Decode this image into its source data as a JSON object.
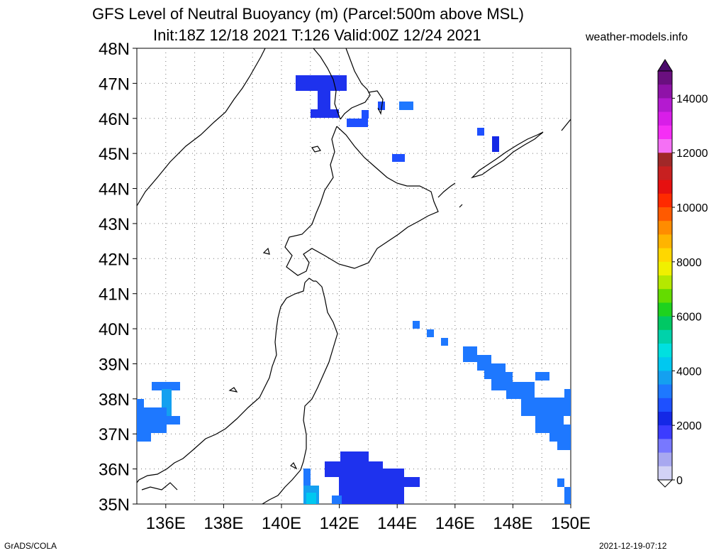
{
  "header": {
    "title_line1": "GFS Level of Neutral Buoyancy (m) (Parcel:500m above MSL)",
    "title_line2": "Init:18Z 12/18 2021 T:126 Valid:00Z 12/24 2021",
    "site": "weather-models.info"
  },
  "footer": {
    "left": "GrADS/COLA",
    "right": "2021-12-19-07:12"
  },
  "map": {
    "lat_labels": [
      "48N",
      "47N",
      "46N",
      "45N",
      "44N",
      "43N",
      "42N",
      "41N",
      "40N",
      "39N",
      "38N",
      "37N",
      "36N",
      "35N"
    ],
    "lon_labels": [
      "136E",
      "138E",
      "140E",
      "142E",
      "144E",
      "146E",
      "148E",
      "150E"
    ],
    "lat_range": [
      35,
      48
    ],
    "lon_range": [
      135,
      150
    ],
    "grid": true
  },
  "colorbar": {
    "labels": [
      "14000",
      "12000",
      "10000",
      "8000",
      "6000",
      "4000",
      "2000",
      "0"
    ],
    "colors": [
      "#6a0f7f",
      "#8f12a8",
      "#b41ad0",
      "#d81ee8",
      "#f52ef5",
      "#f570f5",
      "#a02828",
      "#c82020",
      "#e61010",
      "#ff2a00",
      "#ff5a00",
      "#ff8c00",
      "#ffb400",
      "#ffd700",
      "#f0f000",
      "#b4e800",
      "#64dc00",
      "#1ed21e",
      "#00c864",
      "#00d2aa",
      "#00e0e0",
      "#00c8f0",
      "#14a0f0",
      "#1e78ff",
      "#1e50ff",
      "#1428e6",
      "#3c3cff",
      "#7878ff",
      "#a8a8f0",
      "#d2d2f5"
    ],
    "max_value": 15000,
    "min_value": 0
  }
}
